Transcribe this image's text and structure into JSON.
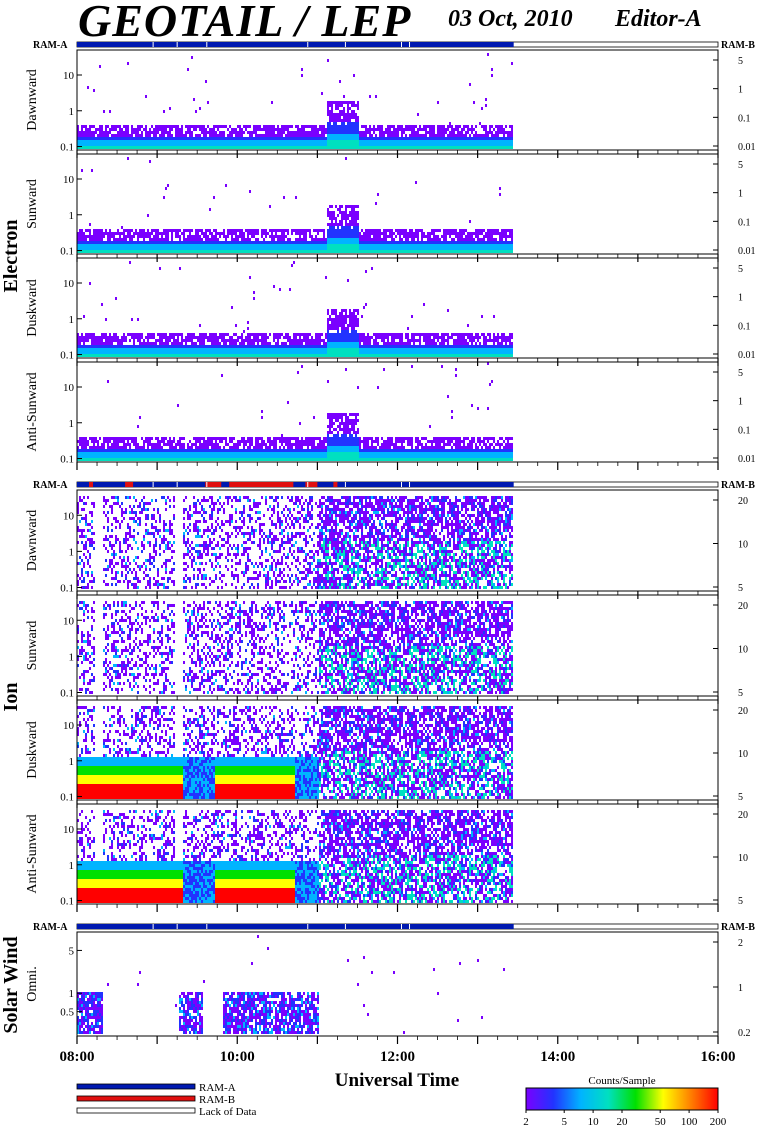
{
  "header": {
    "title": "GEOTAIL / LEP",
    "date": "03 Oct, 2010",
    "editor": "Editor-A"
  },
  "labels": {
    "ram_a": "RAM-A",
    "ram_b": "RAM-B",
    "xlabel": "Universal Time",
    "electron": "Electron",
    "ion": "Ion",
    "solar_wind": "Solar Wind"
  },
  "legend": {
    "items": [
      {
        "label": "RAM-A",
        "color": "#0019b0"
      },
      {
        "label": "RAM-B",
        "color": "#e01010"
      },
      {
        "label": "Lack of Data",
        "color": "#ffffff"
      }
    ]
  },
  "colorbar": {
    "title": "Counts/Sample",
    "ticks": [
      "2",
      "5",
      "10",
      "20",
      "50",
      "100",
      "200"
    ],
    "stops": [
      "#7a00ff",
      "#2233ff",
      "#00b4ff",
      "#00e0c0",
      "#00e000",
      "#ffff00",
      "#ff8000",
      "#ff0000"
    ]
  },
  "chart_data": {
    "type": "heatmap",
    "x": {
      "ticks": [
        "08:00",
        "10:00",
        "12:00",
        "14:00",
        "16:00"
      ],
      "range_hours": [
        8,
        16
      ],
      "data_end_hour": 13.45
    },
    "groups": [
      {
        "name": "Electron",
        "panels": [
          {
            "name": "Dawnward",
            "left_ticks": [
              "0.1",
              "1",
              "10"
            ],
            "right_ticks": [
              "0.01",
              "0.1",
              "1",
              "5"
            ],
            "ylim": [
              0.08,
              50
            ]
          },
          {
            "name": "Sunward",
            "left_ticks": [
              "0.1",
              "1",
              "10"
            ],
            "right_ticks": [
              "0.01",
              "0.1",
              "1",
              "5"
            ],
            "ylim": [
              0.08,
              50
            ]
          },
          {
            "name": "Duskward",
            "left_ticks": [
              "0.1",
              "1",
              "10"
            ],
            "right_ticks": [
              "0.01",
              "0.1",
              "1",
              "5"
            ],
            "ylim": [
              0.08,
              50
            ]
          },
          {
            "name": "Anti-Sunward",
            "left_ticks": [
              "0.1",
              "1",
              "10"
            ],
            "right_ticks": [
              "0.01",
              "0.1",
              "1",
              "5"
            ],
            "ylim": [
              0.08,
              50
            ]
          }
        ]
      },
      {
        "name": "Ion",
        "panels": [
          {
            "name": "Dawnward",
            "left_ticks": [
              "0.1",
              "1",
              "10"
            ],
            "right_ticks": [
              "5",
              "10",
              "20"
            ],
            "ylim": [
              0.08,
              50
            ]
          },
          {
            "name": "Sunward",
            "left_ticks": [
              "0.1",
              "1",
              "10"
            ],
            "right_ticks": [
              "5",
              "10",
              "20"
            ],
            "ylim": [
              0.08,
              50
            ]
          },
          {
            "name": "Duskward",
            "left_ticks": [
              "0.1",
              "1",
              "10"
            ],
            "right_ticks": [
              "5",
              "10",
              "20"
            ],
            "ylim": [
              0.08,
              50
            ]
          },
          {
            "name": "Anti-Sunward",
            "left_ticks": [
              "0.1",
              "1",
              "10"
            ],
            "right_ticks": [
              "5",
              "10",
              "20"
            ],
            "ylim": [
              0.08,
              50
            ]
          }
        ]
      },
      {
        "name": "Solar Wind",
        "panels": [
          {
            "name": "Omni.",
            "left_ticks": [
              "0.5",
              "1",
              "5"
            ],
            "right_ticks": [
              "0.2",
              "1",
              "2"
            ],
            "ylim": [
              0.2,
              10
            ]
          }
        ]
      }
    ]
  }
}
